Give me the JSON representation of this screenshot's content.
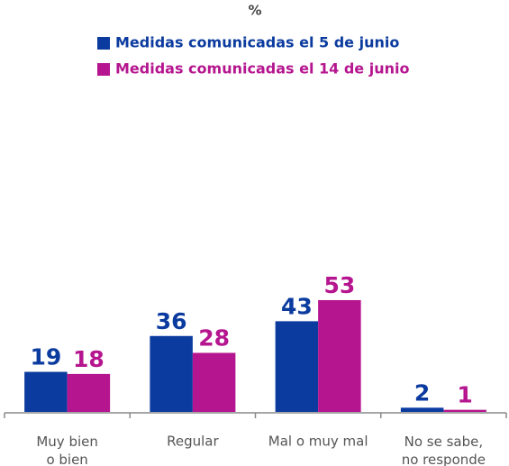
{
  "chart_data": {
    "type": "bar",
    "title": "%",
    "categories": [
      "Muy bien\no bien",
      "Regular",
      "Mal o muy mal",
      "No se sabe,\nno responde"
    ],
    "series": [
      {
        "name": "Medidas comunicadas el 5 de junio",
        "color": "#0b3b9f",
        "values": [
          19,
          36,
          43,
          2
        ]
      },
      {
        "name": "Medidas comunicadas el 14 de junio",
        "color": "#b5158f",
        "values": [
          18,
          28,
          53,
          1
        ]
      }
    ]
  }
}
